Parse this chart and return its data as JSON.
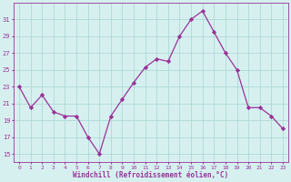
{
  "x": [
    0,
    1,
    2,
    3,
    4,
    5,
    6,
    7,
    8,
    9,
    10,
    11,
    12,
    13,
    14,
    15,
    16,
    17,
    18,
    19,
    20,
    21,
    22,
    23
  ],
  "y": [
    23,
    20.5,
    22,
    20,
    19.5,
    19.5,
    17,
    15,
    19.5,
    21.5,
    23.5,
    25.3,
    26.3,
    26.0,
    29.0,
    31.0,
    32.0,
    29.5,
    27.0,
    25.0,
    20.5,
    20.5,
    19.5,
    18.0
  ],
  "line_color": "#993399",
  "marker": "D",
  "marker_size": 2.2,
  "bg_color": "#d6f0f0",
  "grid_color": "#b0d8d8",
  "xlabel": "Windchill (Refroidissement éolien,°C)",
  "xlabel_color": "#993399",
  "tick_color": "#993399",
  "yticks": [
    15,
    17,
    19,
    21,
    23,
    25,
    27,
    29,
    31
  ],
  "xticks": [
    0,
    1,
    2,
    3,
    4,
    5,
    6,
    7,
    8,
    9,
    10,
    11,
    12,
    13,
    14,
    15,
    16,
    17,
    18,
    19,
    20,
    21,
    22,
    23
  ],
  "ylim": [
    14.0,
    33.0
  ],
  "xlim": [
    -0.5,
    23.5
  ]
}
